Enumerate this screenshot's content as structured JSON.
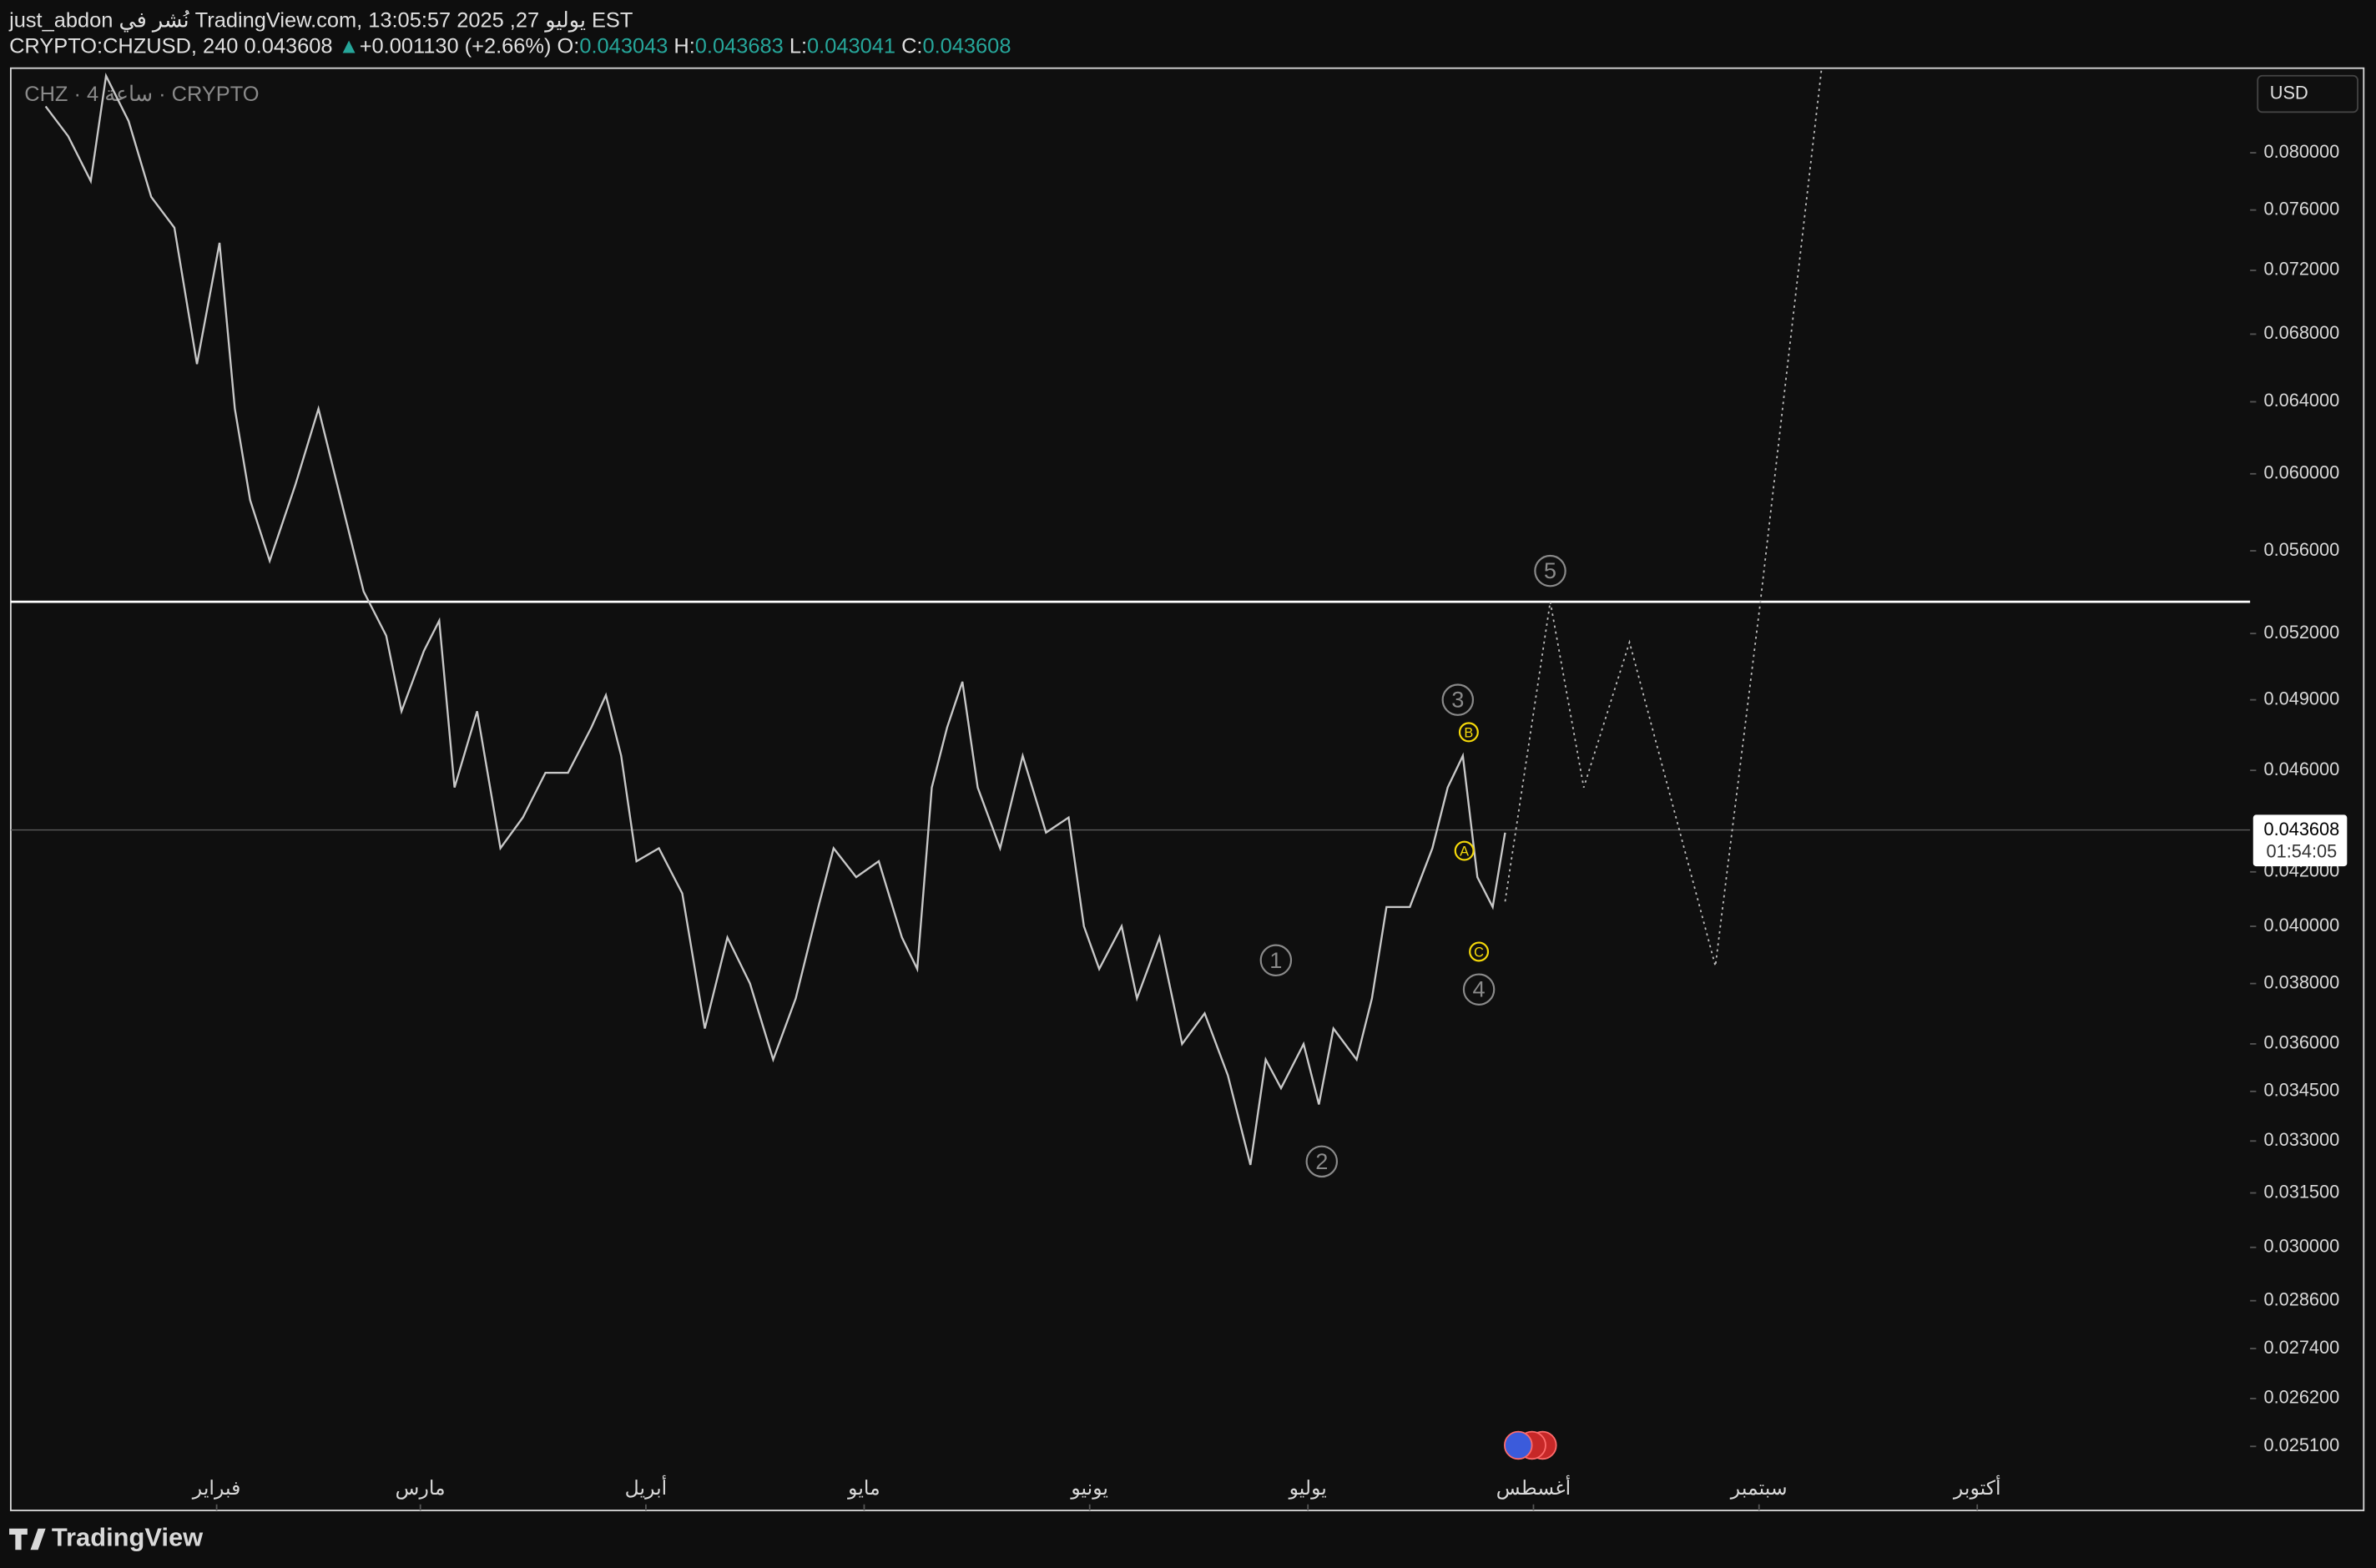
{
  "header": {
    "user": "just_abdon",
    "published": "نُشر في TradingView.com, يوليو 27, 2025 13:05:57 EST",
    "symbol": "CRYPTO:CHZUSD, 240 0.043608",
    "arrow": "▲",
    "change": "+0.001130 (+2.66%)",
    "o_label": "O:",
    "o": "0.043043",
    "h_label": "H:",
    "h": "0.043683",
    "l_label": "L:",
    "l": "0.043041",
    "c_label": "C:",
    "c": "0.043608"
  },
  "chart_data": {
    "type": "line",
    "legend": "CHZ · 4 ساعة · CRYPTO",
    "currency": "USD",
    "log_scale": true,
    "color": "#c8c8c8",
    "x": [
      8.5,
      11.6,
      14.7,
      16.8,
      19.9,
      23.0,
      26.2,
      29.3,
      32.4,
      34.5,
      36.6,
      39.3,
      42.8,
      46.0,
      49.1,
      52.2,
      55.3,
      57.4,
      60.5,
      62.6,
      64.7,
      67.8,
      71.0,
      74.1,
      77.2,
      80.3,
      83.5,
      85.5,
      87.6,
      89.7,
      92.8,
      96.0,
      99.1,
      102.2,
      105.3,
      108.5,
      111.6,
      114.7,
      116.8,
      119.9,
      123.0,
      126.2,
      128.3,
      130.3,
      132.4,
      134.5,
      136.6,
      139.7,
      142.8,
      146.0,
      149.1,
      151.2,
      153.3,
      156.4,
      158.5,
      161.6,
      164.7,
      167.8,
      171.0,
      174.1,
      176.2,
      178.3,
      181.4,
      183.5,
      185.5,
      188.7,
      190.8,
      192.8,
      196.0,
      199.1,
      201.2,
      203.3,
      205.3,
      207.4,
      209.1
    ],
    "values": [
      0.0834,
      0.0812,
      0.078,
      0.0857,
      0.0823,
      0.0769,
      0.0748,
      0.0662,
      0.0738,
      0.0636,
      0.0586,
      0.0555,
      0.0594,
      0.0636,
      0.0586,
      0.054,
      0.0519,
      0.0485,
      0.0512,
      0.0526,
      0.0453,
      0.0485,
      0.0429,
      0.0441,
      0.0459,
      0.0459,
      0.0478,
      0.0492,
      0.0466,
      0.0424,
      0.0429,
      0.0412,
      0.0365,
      0.0396,
      0.038,
      0.0355,
      0.0375,
      0.0407,
      0.0429,
      0.0418,
      0.0424,
      0.0396,
      0.0385,
      0.0453,
      0.0478,
      0.0498,
      0.0453,
      0.0429,
      0.0466,
      0.0435,
      0.0441,
      0.04,
      0.0385,
      0.04,
      0.0375,
      0.0396,
      0.036,
      0.037,
      0.035,
      0.0323,
      0.0355,
      0.0346,
      0.036,
      0.0341,
      0.0365,
      0.0355,
      0.0375,
      0.0407,
      0.0407,
      0.0429,
      0.0453,
      0.0466,
      0.0418,
      0.0407,
      0.0435
    ],
    "projection": {
      "x": [
        209.1,
        215.3,
        219.9,
        226.2,
        238.0,
        244.2,
        252.6
      ],
      "values": [
        0.0409,
        0.0535,
        0.0453,
        0.0516,
        0.0386,
        0.0535,
        0.0863
      ]
    },
    "hline": 0.0535,
    "last_price": 0.043608,
    "countdown": "01:54:05",
    "annotations": [
      {
        "text": "5",
        "x": 215.3,
        "y": 0.055,
        "color": "#8a8a8a"
      },
      {
        "text": "3",
        "x": 202.6,
        "y": 0.049,
        "color": "#8a8a8a"
      },
      {
        "text": "1",
        "x": 177.6,
        "y": 0.0388,
        "color": "#8a8a8a"
      },
      {
        "text": "2",
        "x": 183.9,
        "y": 0.0324,
        "color": "#8a8a8a"
      },
      {
        "text": "4",
        "x": 205.5,
        "y": 0.0378,
        "color": "#8a8a8a"
      },
      {
        "text": "B",
        "x": 204.1,
        "y": 0.0476,
        "color": "#f5d90a"
      },
      {
        "text": "A",
        "x": 203.5,
        "y": 0.0428,
        "color": "#f5d90a"
      },
      {
        "text": "C",
        "x": 205.5,
        "y": 0.0391,
        "color": "#f5d90a"
      }
    ],
    "xlim": [
      3.7,
      311.5
    ],
    "ylim": [
      0.0237,
      0.0863
    ],
    "xticks": [
      {
        "value": 32,
        "label": "فبراير"
      },
      {
        "value": 60,
        "label": "مارس"
      },
      {
        "value": 91,
        "label": "أبريل"
      },
      {
        "value": 121,
        "label": "مايو"
      },
      {
        "value": 152,
        "label": "يونيو"
      },
      {
        "value": 182,
        "label": "يوليو"
      },
      {
        "value": 213,
        "label": "أغسطس"
      },
      {
        "value": 244,
        "label": "سبتمبر"
      },
      {
        "value": 274,
        "label": "أكتوبر"
      }
    ],
    "yticks": [
      {
        "value": 0.08,
        "label": "0.080000"
      },
      {
        "value": 0.076,
        "label": "0.076000"
      },
      {
        "value": 0.072,
        "label": "0.072000"
      },
      {
        "value": 0.068,
        "label": "0.068000"
      },
      {
        "value": 0.064,
        "label": "0.064000"
      },
      {
        "value": 0.06,
        "label": "0.060000"
      },
      {
        "value": 0.056,
        "label": "0.056000"
      },
      {
        "value": 0.052,
        "label": "0.052000"
      },
      {
        "value": 0.049,
        "label": "0.049000"
      },
      {
        "value": 0.046,
        "label": "0.046000"
      },
      {
        "value": 0.042,
        "label": "0.042000"
      },
      {
        "value": 0.04,
        "label": "0.040000"
      },
      {
        "value": 0.038,
        "label": "0.038000"
      },
      {
        "value": 0.036,
        "label": "0.036000"
      },
      {
        "value": 0.0345,
        "label": "0.034500"
      },
      {
        "value": 0.033,
        "label": "0.033000"
      },
      {
        "value": 0.0315,
        "label": "0.031500"
      },
      {
        "value": 0.03,
        "label": "0.030000"
      },
      {
        "value": 0.0286,
        "label": "0.028600"
      },
      {
        "value": 0.0274,
        "label": "0.027400"
      },
      {
        "value": 0.0262,
        "label": "0.026200"
      },
      {
        "value": 0.0251,
        "label": "0.025100"
      }
    ]
  },
  "footer": {
    "brand": "TradingView"
  }
}
